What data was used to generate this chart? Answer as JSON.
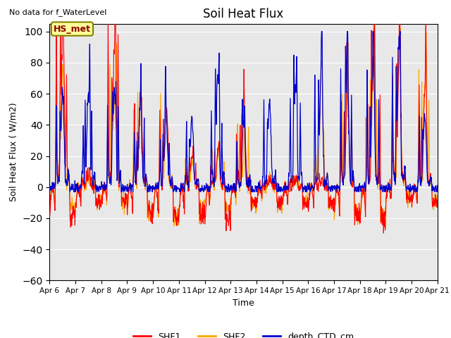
{
  "title": "Soil Heat Flux",
  "ylabel": "Soil Heat Flux ( W/m2)",
  "xlabel": "Time",
  "top_left_text": "No data for f_WaterLevel",
  "annotation_text": "HS_met",
  "ylim": [
    -60,
    105
  ],
  "yticks": [
    -60,
    -40,
    -20,
    0,
    20,
    40,
    60,
    80,
    100
  ],
  "xtick_labels": [
    "Apr 6",
    "Apr 7",
    "Apr 8",
    "Apr 9",
    "Apr 10",
    "Apr 11",
    "Apr 12",
    "Apr 13",
    "Apr 14",
    "Apr 15",
    "Apr 16",
    "Apr 17",
    "Apr 18",
    "Apr 19",
    "Apr 20",
    "Apr 21"
  ],
  "colors": {
    "SHF1": "#ff0000",
    "SHF2": "#ffa500",
    "depth_CTD_cm": "#0000cd",
    "background": "#e8e8e8",
    "annotation_bg": "#ffff99",
    "annotation_border": "#808000"
  },
  "legend_labels": [
    "SHF1",
    "SHF2",
    "depth_CTD_cm"
  ]
}
